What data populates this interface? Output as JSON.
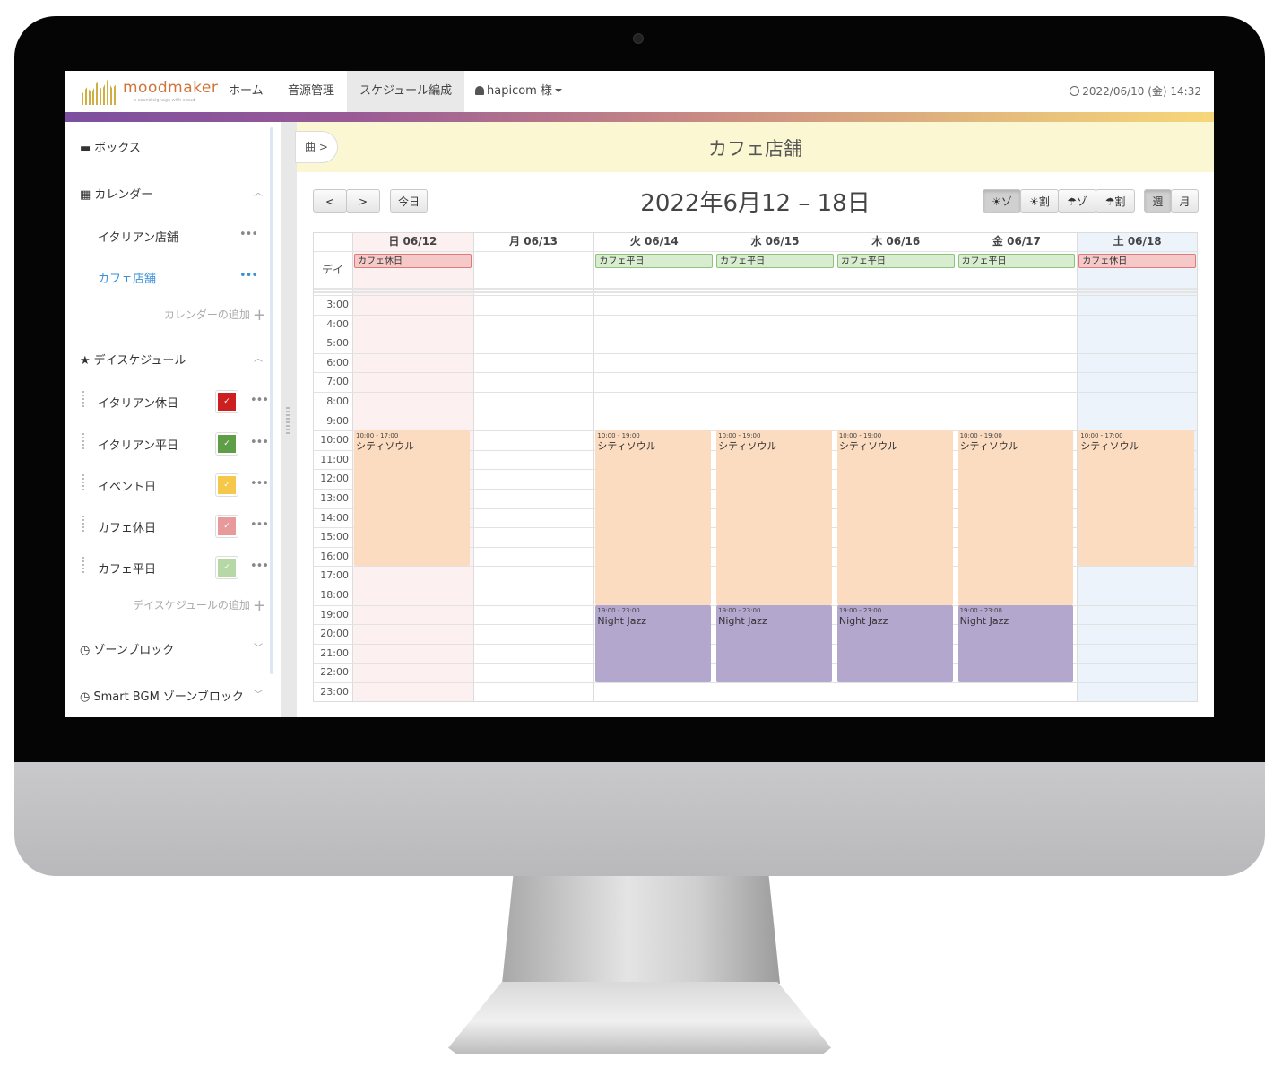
{
  "nav": {
    "brand": "moodmaker",
    "brand_tagline": "a sound signage with cloud",
    "items": [
      "ホーム",
      "音源管理",
      "スケジュール編成"
    ],
    "user": "hapicom 様",
    "clock": "2022/06/10 (金) 14:32"
  },
  "sidebar": {
    "box": "ボックス",
    "calendar": "カレンダー",
    "calendars": [
      "イタリアン店舗",
      "カフェ店舗"
    ],
    "add_calendar": "カレンダーの追加",
    "day_schedule": "デイスケジュール",
    "schedules": [
      {
        "label": "イタリアン休日",
        "color": "#cc1f1f"
      },
      {
        "label": "イタリアン平日",
        "color": "#5d9e46"
      },
      {
        "label": "イベント日",
        "color": "#f5c84a"
      },
      {
        "label": "カフェ休日",
        "color": "#e89a9a"
      },
      {
        "label": "カフェ平日",
        "color": "#b6d8a6"
      }
    ],
    "add_schedule": "デイスケジュールの追加",
    "zone_block": "ゾーンブロック",
    "smart_zone_block": "Smart BGM ゾーンブロック"
  },
  "main": {
    "crumb": "曲 >",
    "title": "カフェ店舗",
    "range": "2022年6月12 – 18日",
    "today": "今日",
    "prev": "<",
    "next": ">",
    "filters": [
      "☀ゾ",
      "☀割",
      "☂ゾ",
      "☂割"
    ],
    "views": [
      "週",
      "月"
    ]
  },
  "calendar": {
    "days": [
      "日 06/12",
      "月 06/13",
      "火 06/14",
      "水 06/15",
      "木 06/16",
      "金 06/17",
      "土 06/18"
    ],
    "allday_label": "デイ",
    "allday": [
      "カフェ休日",
      "",
      "カフェ平日",
      "カフェ平日",
      "カフェ平日",
      "カフェ平日",
      "カフェ休日"
    ],
    "hours": [
      "3:00",
      "4:00",
      "5:00",
      "6:00",
      "7:00",
      "8:00",
      "9:00",
      "10:00",
      "11:00",
      "12:00",
      "13:00",
      "14:00",
      "15:00",
      "16:00",
      "17:00",
      "18:00",
      "19:00",
      "20:00",
      "21:00",
      "22:00",
      "23:00"
    ],
    "events": [
      {
        "day": 0,
        "start": 10,
        "end": 17,
        "time": "10:00 - 17:00",
        "title": "シティソウル",
        "kind": "day"
      },
      {
        "day": 2,
        "start": 10,
        "end": 19,
        "time": "10:00 - 19:00",
        "title": "シティソウル",
        "kind": "day"
      },
      {
        "day": 3,
        "start": 10,
        "end": 19,
        "time": "10:00 - 19:00",
        "title": "シティソウル",
        "kind": "day"
      },
      {
        "day": 4,
        "start": 10,
        "end": 19,
        "time": "10:00 - 19:00",
        "title": "シティソウル",
        "kind": "day"
      },
      {
        "day": 5,
        "start": 10,
        "end": 19,
        "time": "10:00 - 19:00",
        "title": "シティソウル",
        "kind": "day"
      },
      {
        "day": 6,
        "start": 10,
        "end": 17,
        "time": "10:00 - 17:00",
        "title": "シティソウル",
        "kind": "day"
      },
      {
        "day": 2,
        "start": 19,
        "end": 23,
        "time": "19:00 - 23:00",
        "title": "Night Jazz",
        "kind": "night"
      },
      {
        "day": 3,
        "start": 19,
        "end": 23,
        "time": "19:00 - 23:00",
        "title": "Night Jazz",
        "kind": "night"
      },
      {
        "day": 4,
        "start": 19,
        "end": 23,
        "time": "19:00 - 23:00",
        "title": "Night Jazz",
        "kind": "night"
      },
      {
        "day": 5,
        "start": 19,
        "end": 23,
        "time": "19:00 - 23:00",
        "title": "Night Jazz",
        "kind": "night"
      }
    ],
    "colors": {
      "sunday_bg": "#fcf0f0",
      "saturday_bg": "#edf3fb",
      "holiday_allday": "#f6c9c9",
      "weekday_allday": "#d8edcf",
      "day_event": "#fbdcc0",
      "night_event": "#b3a7cd"
    }
  }
}
